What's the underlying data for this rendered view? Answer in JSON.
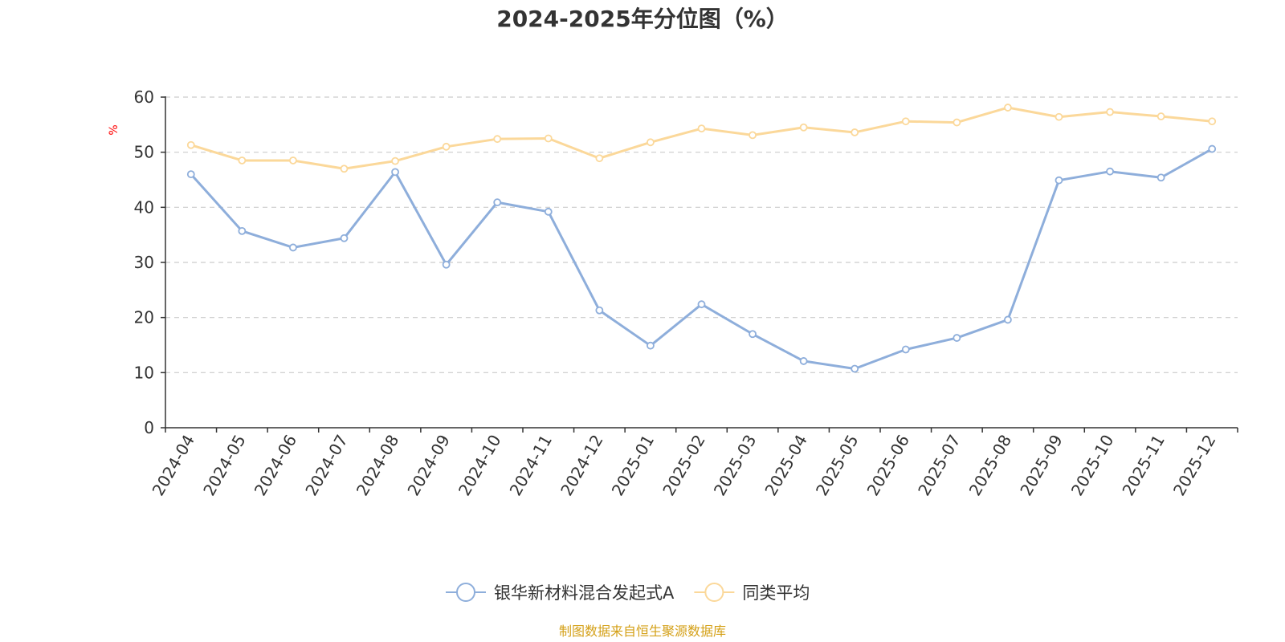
{
  "chart_data": {
    "type": "line",
    "title": "2024-2025年分位图（%）",
    "ylabel": "%",
    "xlabel": "",
    "ylim": [
      0,
      60
    ],
    "yticks": [
      0,
      10,
      20,
      30,
      40,
      50,
      60
    ],
    "grid": true,
    "categories": [
      "2024-04",
      "2024-05",
      "2024-06",
      "2024-07",
      "2024-08",
      "2024-09",
      "2024-10",
      "2024-11",
      "2024-12",
      "2025-01",
      "2025-02",
      "2025-03",
      "2025-04",
      "2025-05",
      "2025-06",
      "2025-07",
      "2025-08",
      "2025-09",
      "2025-10",
      "2025-11",
      "2025-12"
    ],
    "series": [
      {
        "name": "银华新材料混合发起式A",
        "color": "#8eaedb",
        "values": [
          46.0,
          35.7,
          32.7,
          34.4,
          46.4,
          29.6,
          40.9,
          39.2,
          21.3,
          14.9,
          22.4,
          17.0,
          12.1,
          10.7,
          14.2,
          16.3,
          19.6,
          44.9,
          46.5,
          45.4,
          50.6
        ]
      },
      {
        "name": "同类平均",
        "color": "#fbd89a",
        "values": [
          51.3,
          48.5,
          48.5,
          47.0,
          48.4,
          51.0,
          52.4,
          52.5,
          48.9,
          51.8,
          54.3,
          53.1,
          54.5,
          53.6,
          55.6,
          55.4,
          58.1,
          56.4,
          57.3,
          56.5,
          55.6
        ]
      }
    ],
    "legend_position": "bottom-center",
    "source": "制图数据来自恒生聚源数据库",
    "colors": {
      "axis": "#333333",
      "grid": "#cccccc",
      "ylabel": "#ff0000",
      "source": "#d4a017"
    }
  }
}
